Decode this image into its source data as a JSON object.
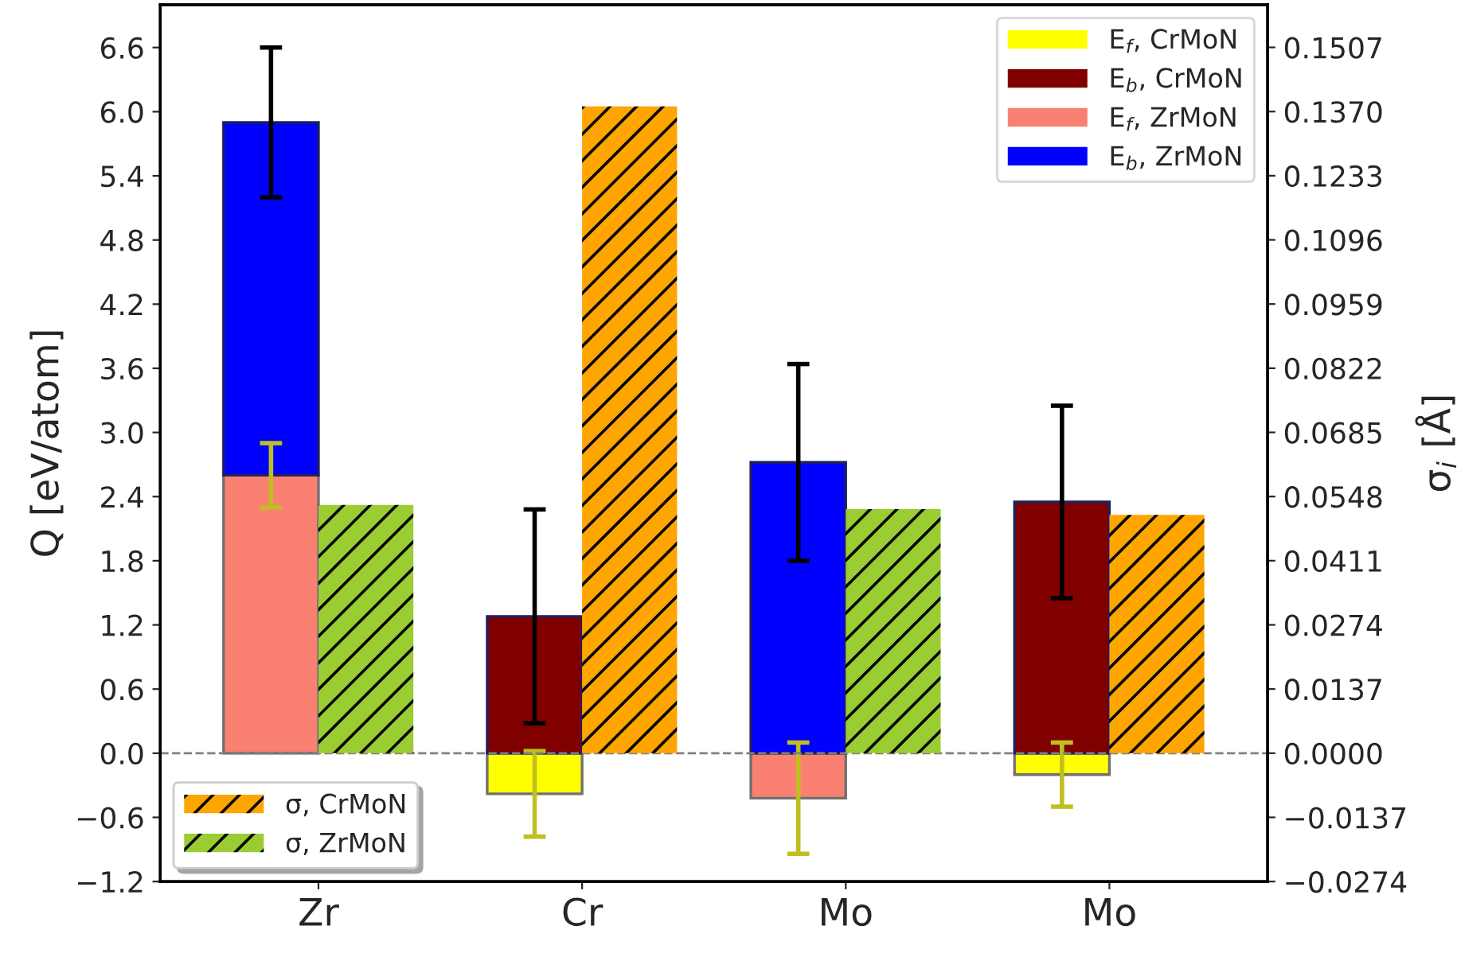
{
  "chart_data": {
    "type": "bar",
    "stacked": true,
    "categories": [
      "Zr",
      "Cr",
      "Mo",
      "Mo"
    ],
    "ylabel": "Q [eV/atom]",
    "y2label": "σ$_{i}$ [Å]",
    "ylim": [
      -1.2,
      7.0
    ],
    "yticks": [
      {
        "value": -1.2,
        "label": "−1.2"
      },
      {
        "value": -0.6,
        "label": "−0.6"
      },
      {
        "value": 0,
        "label": "0.0"
      },
      0.6,
      1.2,
      1.8,
      2.4,
      {
        "value": 3,
        "label": "3.0"
      },
      3.6,
      4.2,
      4.8,
      5.4,
      {
        "value": 6,
        "label": "6.0"
      },
      6.6
    ],
    "y2lim": [
      -0.0274,
      0.1598
    ],
    "y2ticks": [
      {
        "value": -0.0274,
        "label": "−0.0274"
      },
      {
        "value": -0.0137,
        "label": "−0.0137"
      },
      {
        "value": 0,
        "label": "0.0000"
      },
      0.0137,
      0.0274,
      0.0411,
      0.0548,
      0.0685,
      {
        "value": 0.0822,
        "label": "0.0822"
      },
      0.0959,
      0.1096,
      0.1233,
      {
        "value": 0.137,
        "label": "0.1370"
      },
      0.1507
    ],
    "series": [
      {
        "name": "E$_{f}$, CrMoN",
        "color": "#ffff00",
        "values": [
          null,
          -0.38,
          null,
          -0.2
        ],
        "errors": [
          null,
          0.4,
          null,
          0.3
        ]
      },
      {
        "name": "E$_{b}$, CrMoN",
        "color": "#800000",
        "values": [
          null,
          1.28,
          null,
          2.35
        ],
        "errors": [
          null,
          1.0,
          null,
          0.9
        ]
      },
      {
        "name": "E$_{f}$, ZrMoN",
        "color": "#fa8072",
        "values": [
          2.6,
          null,
          -0.42,
          null
        ],
        "errors": [
          0.3,
          null,
          0.52,
          null
        ]
      },
      {
        "name": "E$_{b}$, ZrMoN",
        "color": "#0000ff",
        "values": [
          3.3,
          null,
          2.72,
          null
        ],
        "errors": [
          0.7,
          null,
          0.92,
          null
        ]
      },
      {
        "name": "σ, CrMoN",
        "color": "#ffa500",
        "axis": "y2",
        "values": [
          null,
          0.1381,
          null,
          0.0509
        ]
      },
      {
        "name": "σ, ZrMoN",
        "color": "#9acd32",
        "axis": "y2",
        "values": [
          0.053,
          null,
          0.0521,
          null
        ]
      }
    ],
    "ref_lines": [
      {
        "axis": "y",
        "value": 0,
        "color": "#808080",
        "line_style": "dashed"
      }
    ],
    "legend": "top right",
    "grid": false
  }
}
